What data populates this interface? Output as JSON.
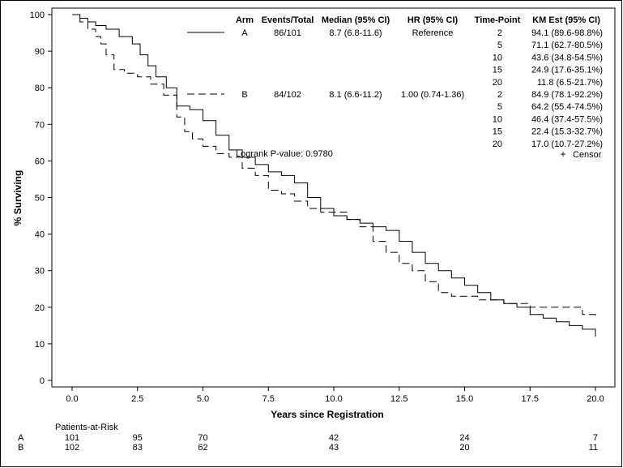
{
  "chart_data": {
    "type": "line",
    "xlabel": "Years since Registration",
    "ylabel": "% Surviving",
    "xlim": [
      0,
      20
    ],
    "ylim": [
      0,
      100
    ],
    "x_ticks": [
      "0.0",
      "2.5",
      "5.0",
      "7.5",
      "10.0",
      "12.5",
      "15.0",
      "17.5",
      "20.0"
    ],
    "y_ticks": [
      "0",
      "10",
      "20",
      "30",
      "40",
      "50",
      "60",
      "70",
      "80",
      "90",
      "100"
    ],
    "grid": false,
    "legend": {
      "placement": "top-right",
      "headers": [
        "Arm",
        "Events/Total",
        "Median (95% CI)",
        "HR (95% CI)",
        "Time-Point",
        "KM Est (95% CI)"
      ],
      "censor_label": "Censor"
    },
    "annotation": "Logrank P-value: 0.9780",
    "series": [
      {
        "name": "A",
        "line_style": "solid",
        "events_total": "86/101",
        "median_ci": "8.7 (6.8-11.6)",
        "hr_ci": "Reference",
        "timepoints": [
          {
            "time": "2",
            "est": "94.1 (89.6-98.8%)"
          },
          {
            "time": "5",
            "est": "71.1 (62.7-80.5%)"
          },
          {
            "time": "10",
            "est": "43.6 (34.8-54.5%)"
          },
          {
            "time": "15",
            "est": "24.9 (17.6-35.1%)"
          },
          {
            "time": "20",
            "est": "11.8 (6.5-21.7%)"
          }
        ],
        "x": [
          0,
          0.3,
          0.6,
          0.9,
          1.3,
          1.8,
          2.3,
          2.6,
          2.9,
          3.2,
          3.6,
          4.0,
          4.5,
          5.0,
          5.5,
          6.0,
          6.5,
          7.0,
          7.5,
          8.0,
          8.5,
          9.0,
          9.5,
          10.0,
          10.5,
          11.0,
          11.5,
          12.0,
          12.5,
          13.0,
          13.5,
          14.0,
          14.5,
          15.0,
          15.5,
          16.0,
          16.5,
          17.0,
          17.5,
          18.0,
          18.5,
          19.0,
          19.5,
          20.0
        ],
        "y": [
          100,
          99,
          98,
          97,
          96,
          94,
          92,
          89,
          86,
          83,
          80,
          75,
          74,
          71,
          67,
          63,
          61,
          59,
          57,
          56,
          54,
          50,
          47,
          45,
          44,
          43,
          42,
          41,
          38,
          35,
          32,
          30,
          28,
          26,
          24,
          22,
          21,
          20,
          18,
          17,
          16,
          15,
          14,
          12
        ]
      },
      {
        "name": "B",
        "line_style": "dashed",
        "events_total": "84/102",
        "median_ci": "8.1 (6.6-11.2)",
        "hr_ci": "1.00 (0.74-1.36)",
        "timepoints": [
          {
            "time": "2",
            "est": "84.9 (78.1-92.2%)"
          },
          {
            "time": "5",
            "est": "64.2 (55.4-74.5%)"
          },
          {
            "time": "10",
            "est": "46.4 (37.4-57.5%)"
          },
          {
            "time": "15",
            "est": "22.4 (15.3-32.7%)"
          },
          {
            "time": "20",
            "est": "17.0 (10.7-27.2%)"
          }
        ],
        "x": [
          0,
          0.3,
          0.6,
          0.9,
          1.1,
          1.3,
          1.6,
          2.0,
          2.5,
          3.0,
          3.5,
          4.0,
          4.3,
          4.6,
          5.0,
          5.5,
          6.0,
          6.5,
          7.0,
          7.5,
          8.0,
          8.5,
          9.0,
          9.5,
          10.0,
          10.5,
          11.0,
          11.5,
          12.0,
          12.5,
          13.0,
          13.5,
          14.0,
          14.5,
          15.0,
          15.5,
          16.0,
          16.5,
          17.0,
          17.5,
          18.0,
          19.0,
          19.5,
          20.0
        ],
        "y": [
          100,
          98,
          96,
          94,
          92,
          89,
          85,
          84,
          83,
          81,
          78,
          72,
          68,
          66,
          64,
          62,
          61,
          58,
          56,
          52,
          51,
          49,
          47,
          46,
          46,
          44,
          42,
          38,
          35,
          32,
          30,
          27,
          24,
          23,
          23,
          22,
          22,
          21,
          21,
          20,
          20,
          20,
          18,
          17
        ]
      }
    ],
    "risk_table": {
      "title": "Patients-at-Risk",
      "times": [
        0,
        2.5,
        5,
        10,
        15,
        20
      ],
      "rows": [
        {
          "arm": "A",
          "counts": [
            "101",
            "95",
            "70",
            "42",
            "24",
            "7"
          ]
        },
        {
          "arm": "B",
          "counts": [
            "102",
            "83",
            "62",
            "43",
            "20",
            "11"
          ]
        }
      ]
    }
  }
}
